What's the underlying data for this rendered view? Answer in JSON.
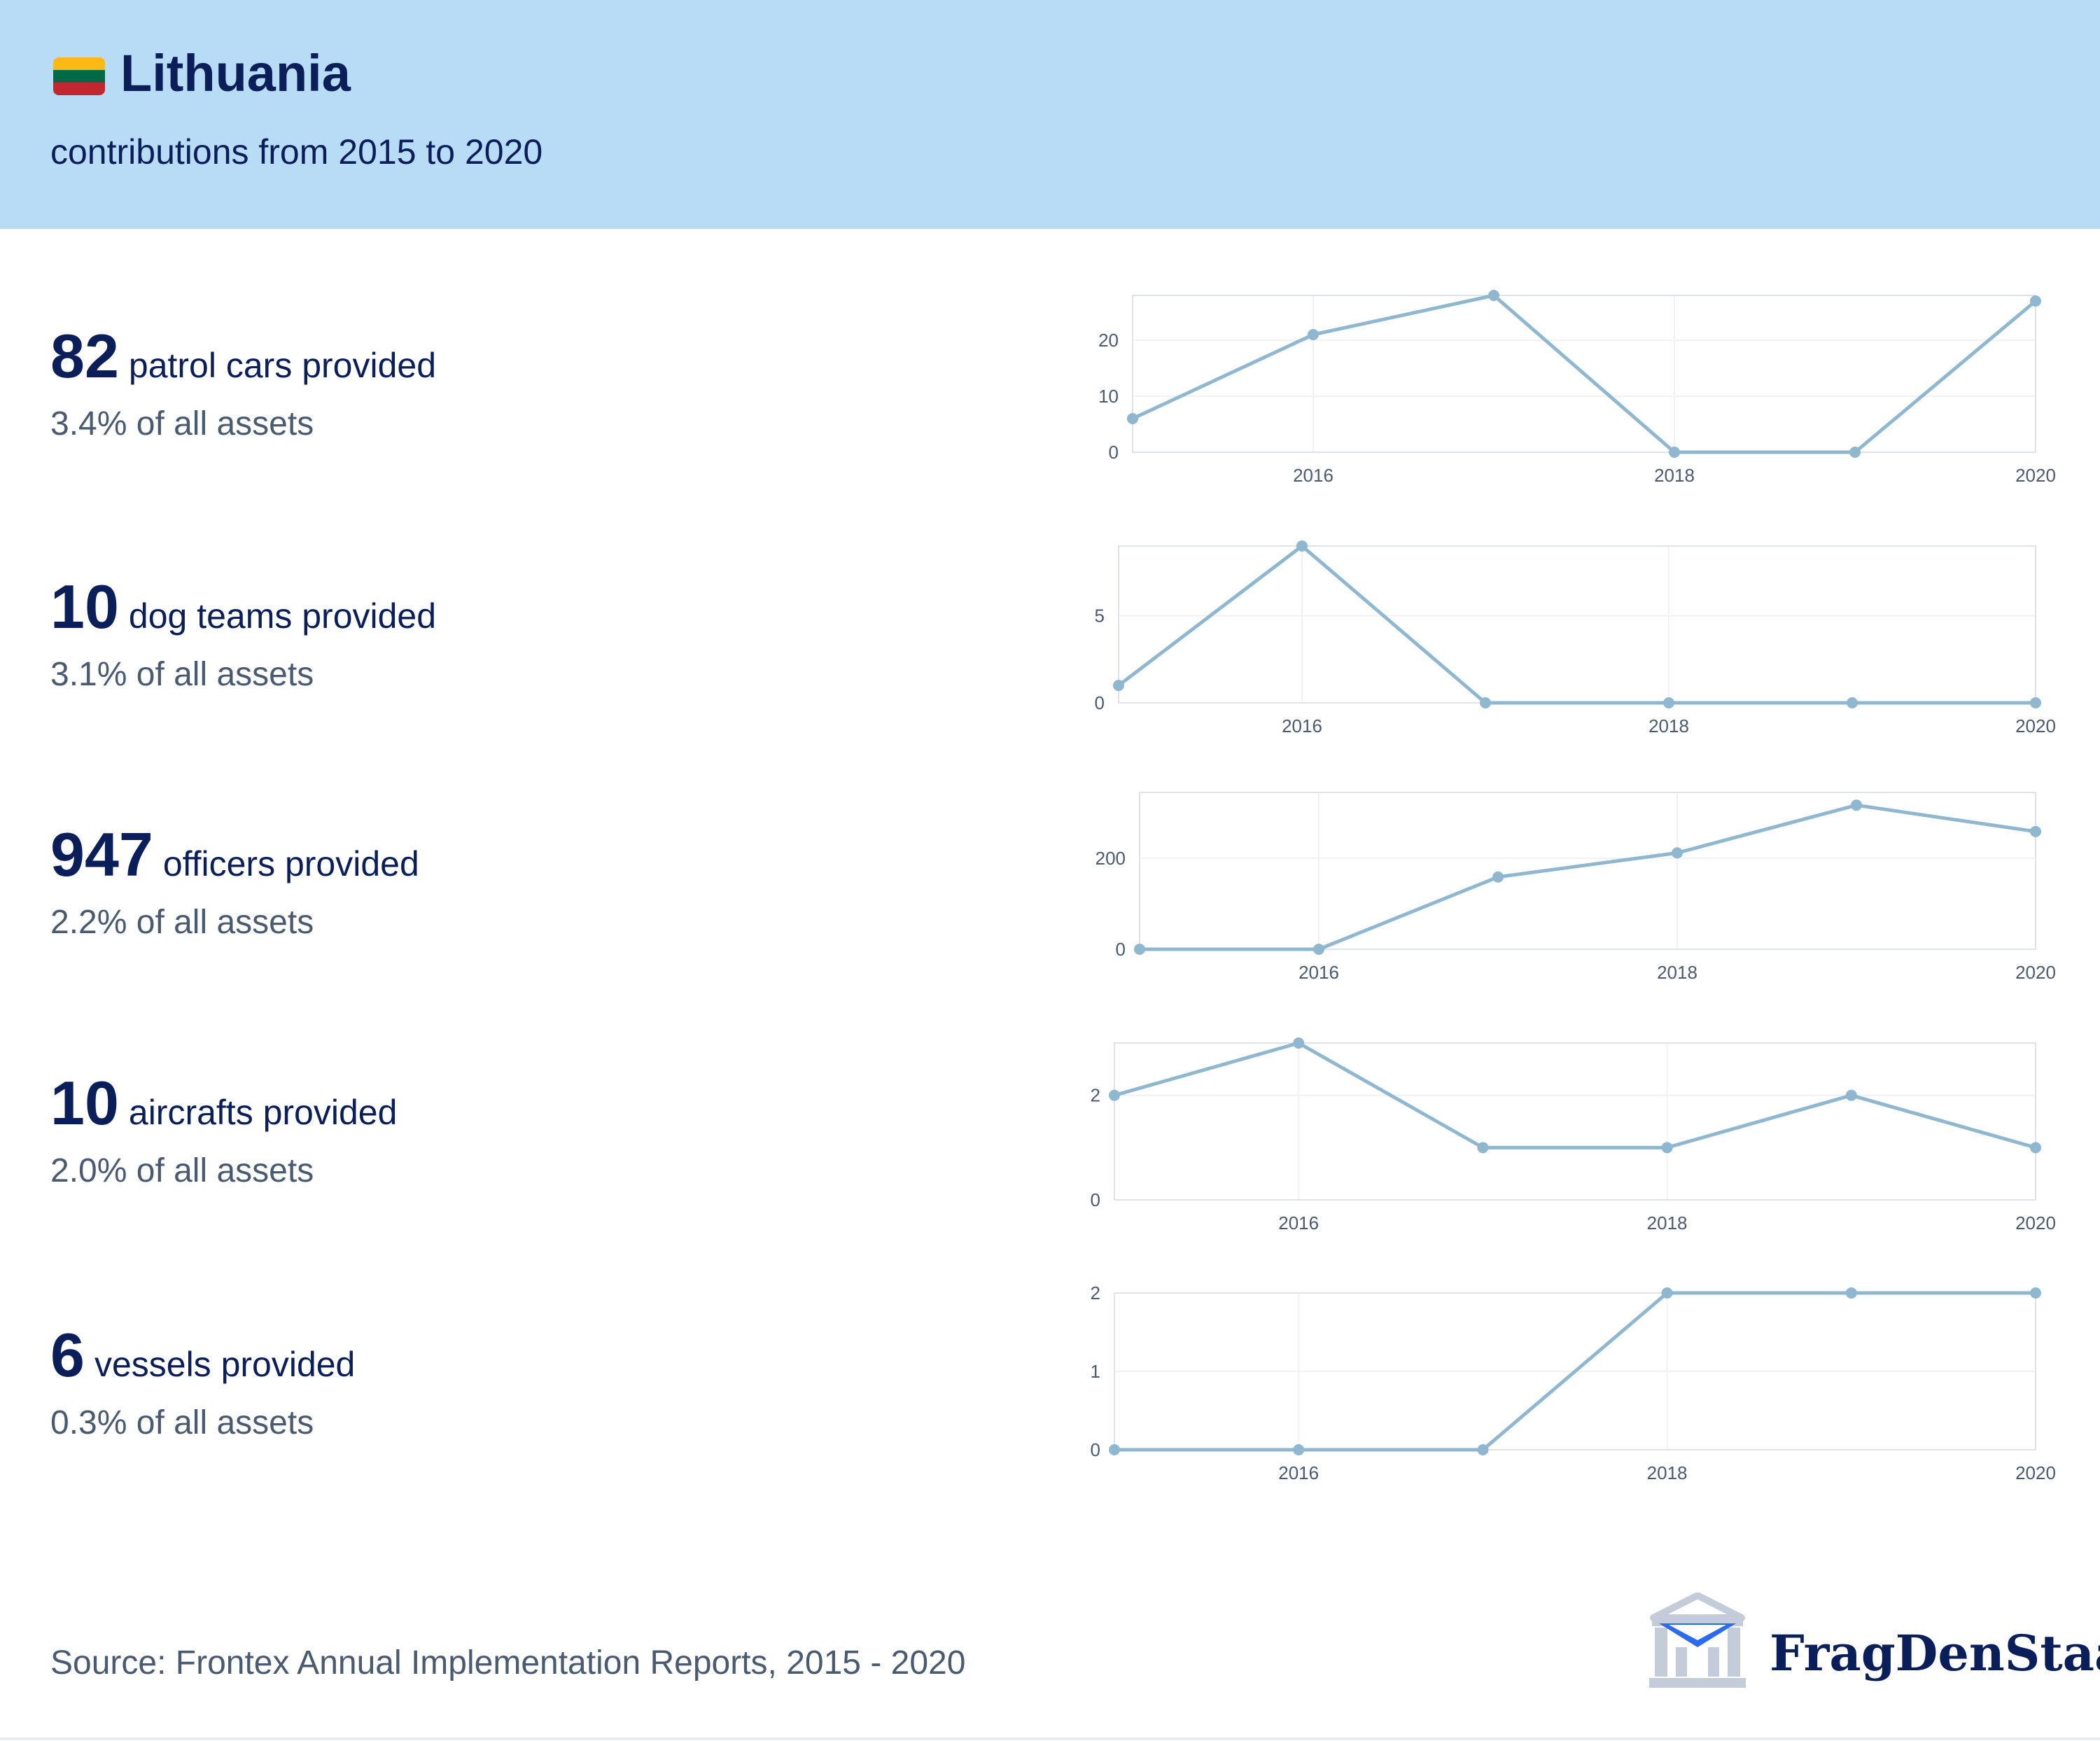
{
  "header": {
    "country": "Lithuania",
    "subtitle": "contributions from 2015 to 2020",
    "flag_colors": [
      "#fdb913",
      "#006a44",
      "#c1272d"
    ],
    "background": "#b8dcf5"
  },
  "stats": [
    {
      "count": "82",
      "label": "patrol cars provided",
      "share": "3.4% of all assets"
    },
    {
      "count": "10",
      "label": "dog teams provided",
      "share": "3.1% of all assets"
    },
    {
      "count": "947",
      "label": "officers provided",
      "share": "2.2% of all assets"
    },
    {
      "count": "10",
      "label": "aircrafts provided",
      "share": "2.0% of all assets"
    },
    {
      "count": "6",
      "label": "vessels provided",
      "share": "0.3% of all assets"
    }
  ],
  "chart_data": [
    {
      "type": "line",
      "x": [
        2015,
        2016,
        2017,
        2018,
        2019,
        2020
      ],
      "values": [
        6,
        21,
        28,
        0,
        0,
        27
      ],
      "ylim": [
        0,
        28
      ],
      "yticks": [
        0,
        10,
        20
      ],
      "xticks": [
        2016,
        2018,
        2020
      ],
      "color": "#8fb8d0"
    },
    {
      "type": "line",
      "x": [
        2015,
        2016,
        2017,
        2018,
        2019,
        2020
      ],
      "values": [
        1,
        9,
        0,
        0,
        0,
        0
      ],
      "ylim": [
        0,
        9
      ],
      "yticks": [
        0,
        5
      ],
      "xticks": [
        2016,
        2018,
        2020
      ],
      "color": "#8fb8d0"
    },
    {
      "type": "line",
      "x": [
        2015,
        2016,
        2017,
        2018,
        2019,
        2020
      ],
      "values": [
        0,
        0,
        159,
        212,
        317,
        259
      ],
      "ylim": [
        0,
        345
      ],
      "yticks": [
        0,
        200
      ],
      "xticks": [
        2016,
        2018,
        2020
      ],
      "color": "#8fb8d0"
    },
    {
      "type": "line",
      "x": [
        2015,
        2016,
        2017,
        2018,
        2019,
        2020
      ],
      "values": [
        2,
        3,
        1,
        1,
        2,
        1
      ],
      "ylim": [
        0,
        3
      ],
      "yticks": [
        0,
        2
      ],
      "xticks": [
        2016,
        2018,
        2020
      ],
      "color": "#8fb8d0"
    },
    {
      "type": "line",
      "x": [
        2015,
        2016,
        2017,
        2018,
        2019,
        2020
      ],
      "values": [
        0,
        0,
        0,
        2,
        2,
        2
      ],
      "ylim": [
        0,
        2
      ],
      "yticks": [
        0,
        1,
        2
      ],
      "xticks": [
        2016,
        2018,
        2020
      ],
      "color": "#8fb8d0"
    }
  ],
  "footer": {
    "source": "Source: Frontex Annual Implementation Reports, 2015 - 2020",
    "brand": "FragDenStaat",
    "logo_icon": "building-with-envelope-icon"
  }
}
